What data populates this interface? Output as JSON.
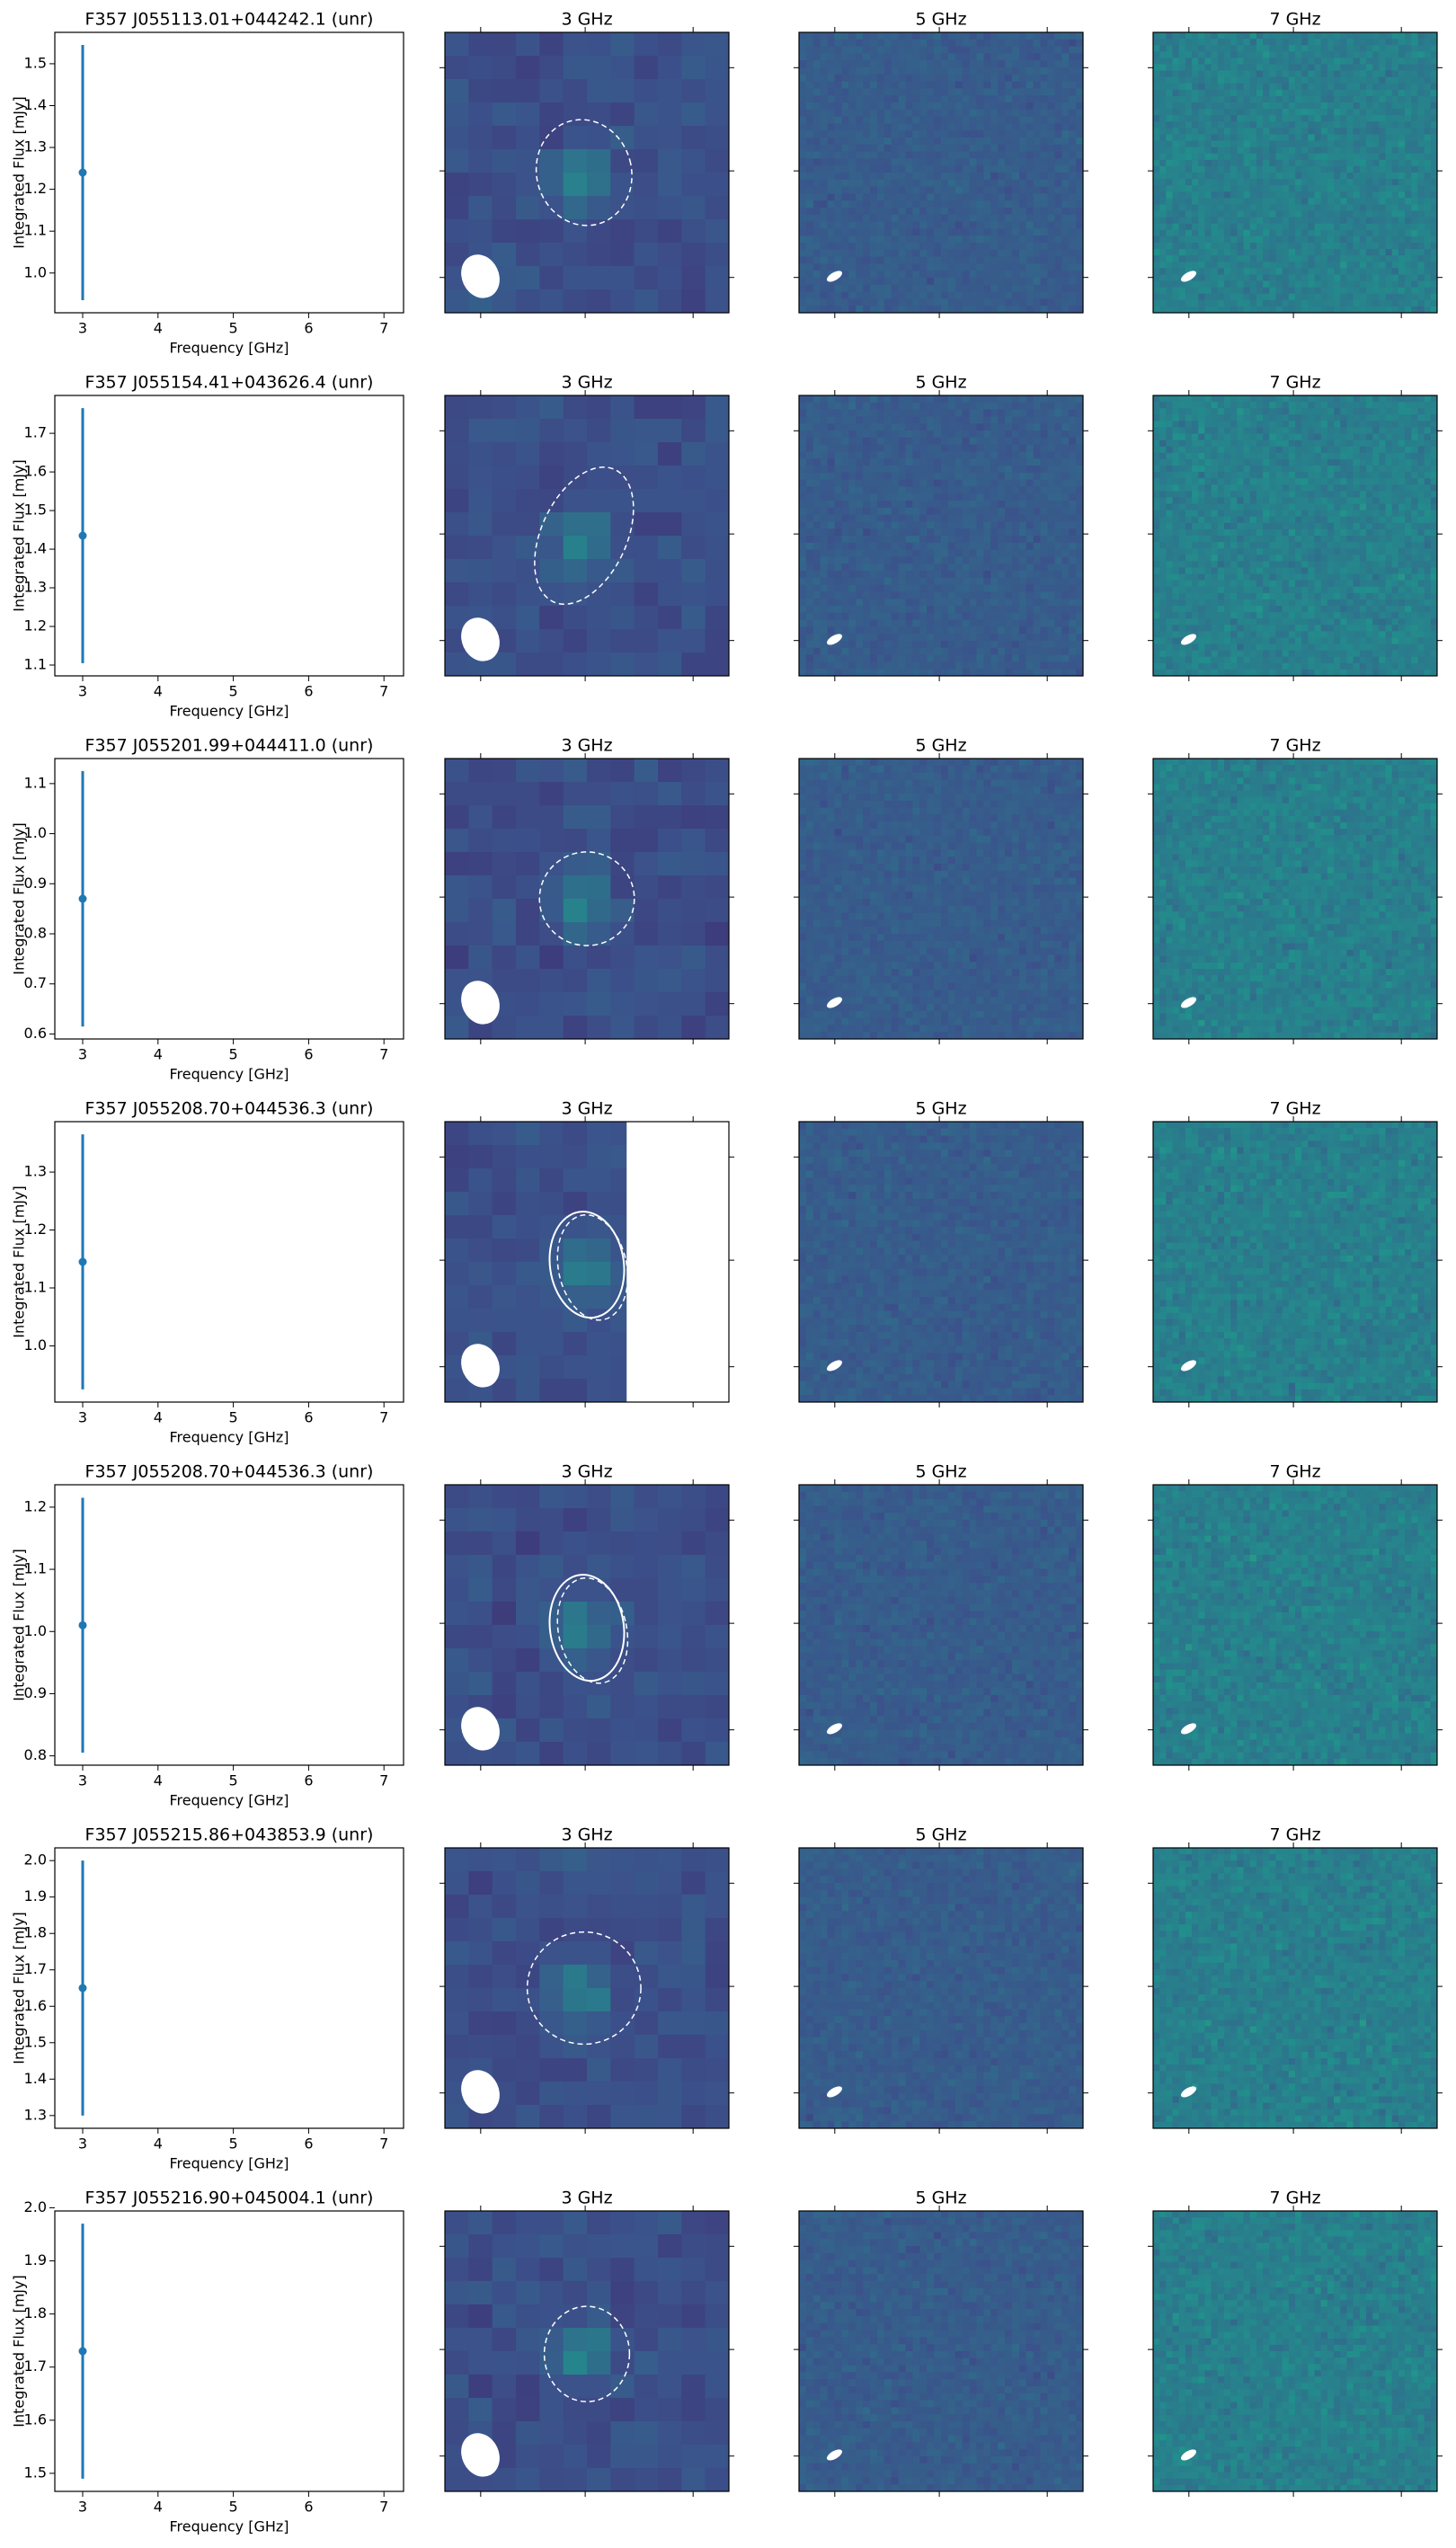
{
  "chart_data": [
    {
      "type": "errorbar",
      "title": "F357 J055113.01+044242.1 (unr)",
      "xlabel": "Frequency [GHz]",
      "ylabel": "Integrated Flux [mJy]",
      "x": [
        3
      ],
      "values": [
        1.24
      ],
      "errors": [
        0.305
      ],
      "color": "#1f77b4",
      "xlim": [
        2.63,
        7.26
      ],
      "xticks": [
        3,
        4,
        5,
        6,
        7
      ],
      "ylim": [
        0.905,
        1.575
      ],
      "yticks": [
        {
          "value": 1,
          "label": "1.0"
        },
        1.1,
        1.2,
        1.3,
        1.4,
        1.5
      ],
      "image_titles": [
        "3 GHz",
        "5 GHz",
        "7 GHz"
      ]
    },
    {
      "type": "errorbar",
      "title": "F357 J055154.41+043626.4 (unr)",
      "xlabel": "Frequency [GHz]",
      "ylabel": "Integrated Flux [mJy]",
      "x": [
        3
      ],
      "values": [
        1.435
      ],
      "errors": [
        0.33
      ],
      "color": "#1f77b4",
      "xlim": [
        2.63,
        7.26
      ],
      "xticks": [
        3,
        4,
        5,
        6,
        7
      ],
      "ylim": [
        1.072,
        1.798
      ],
      "yticks": [
        1.1,
        1.2,
        1.3,
        1.4,
        1.5,
        1.6,
        1.7
      ],
      "image_titles": [
        "3 GHz",
        "5 GHz",
        "7 GHz"
      ]
    },
    {
      "type": "errorbar",
      "title": "F357 J055201.99+044411.0 (unr)",
      "xlabel": "Frequency [GHz]",
      "ylabel": "Integrated Flux [mJy]",
      "x": [
        3
      ],
      "values": [
        0.87
      ],
      "errors": [
        0.255
      ],
      "color": "#1f77b4",
      "xlim": [
        2.63,
        7.26
      ],
      "xticks": [
        3,
        4,
        5,
        6,
        7
      ],
      "ylim": [
        0.59,
        1.15
      ],
      "yticks": [
        0.6,
        0.7,
        0.8,
        0.9,
        {
          "value": 1,
          "label": "1.0"
        },
        1.1
      ],
      "image_titles": [
        "3 GHz",
        "5 GHz",
        "7 GHz"
      ]
    },
    {
      "type": "errorbar",
      "title": "F357 J055208.70+044536.3 (unr)",
      "xlabel": "Frequency [GHz]",
      "ylabel": "Integrated Flux [mJy]",
      "x": [
        3
      ],
      "values": [
        1.145
      ],
      "errors": [
        0.22
      ],
      "color": "#1f77b4",
      "xlim": [
        2.63,
        7.26
      ],
      "xticks": [
        3,
        4,
        5,
        6,
        7
      ],
      "ylim": [
        0.903,
        1.387
      ],
      "yticks": [
        {
          "value": 1,
          "label": "1.0"
        },
        1.1,
        1.2,
        1.3
      ],
      "image_titles": [
        "3 GHz",
        "5 GHz",
        "7 GHz"
      ]
    },
    {
      "type": "errorbar",
      "title": "F357 J055208.70+044536.3 (unr)",
      "xlabel": "Frequency [GHz]",
      "ylabel": "Integrated Flux [mJy]",
      "x": [
        3
      ],
      "values": [
        1.01
      ],
      "errors": [
        0.205
      ],
      "color": "#1f77b4",
      "xlim": [
        2.63,
        7.26
      ],
      "xticks": [
        3,
        4,
        5,
        6,
        7
      ],
      "ylim": [
        0.785,
        1.236
      ],
      "yticks": [
        0.8,
        0.9,
        {
          "value": 1,
          "label": "1.0"
        },
        1.1,
        1.2
      ],
      "image_titles": [
        "3 GHz",
        "5 GHz",
        "7 GHz"
      ]
    },
    {
      "type": "errorbar",
      "title": "F357 J055215.86+043853.9 (unr)",
      "xlabel": "Frequency [GHz]",
      "ylabel": "Integrated Flux [mJy]",
      "x": [
        3
      ],
      "values": [
        1.65
      ],
      "errors": [
        0.35
      ],
      "color": "#1f77b4",
      "xlim": [
        2.63,
        7.26
      ],
      "xticks": [
        3,
        4,
        5,
        6,
        7
      ],
      "ylim": [
        1.265,
        2.035
      ],
      "yticks": [
        1.3,
        1.4,
        1.5,
        1.6,
        1.7,
        1.8,
        1.9,
        {
          "value": 2,
          "label": "2.0"
        }
      ],
      "image_titles": [
        "3 GHz",
        "5 GHz",
        "7 GHz"
      ]
    },
    {
      "type": "errorbar",
      "title": "F357 J055216.90+045004.1 (unr)",
      "xlabel": "Frequency [GHz]",
      "ylabel": "Integrated Flux [mJy]",
      "x": [
        3
      ],
      "values": [
        1.73
      ],
      "errors": [
        0.24
      ],
      "color": "#1f77b4",
      "xlim": [
        2.63,
        7.26
      ],
      "xticks": [
        3,
        4,
        5,
        6,
        7
      ],
      "ylim": [
        1.466,
        1.994
      ],
      "yticks": [
        1.5,
        1.6,
        1.7,
        1.8,
        1.9,
        {
          "value": 2,
          "label": "2.0"
        }
      ],
      "image_titles": [
        "3 GHz",
        "5 GHz",
        "7 GHz"
      ]
    }
  ]
}
